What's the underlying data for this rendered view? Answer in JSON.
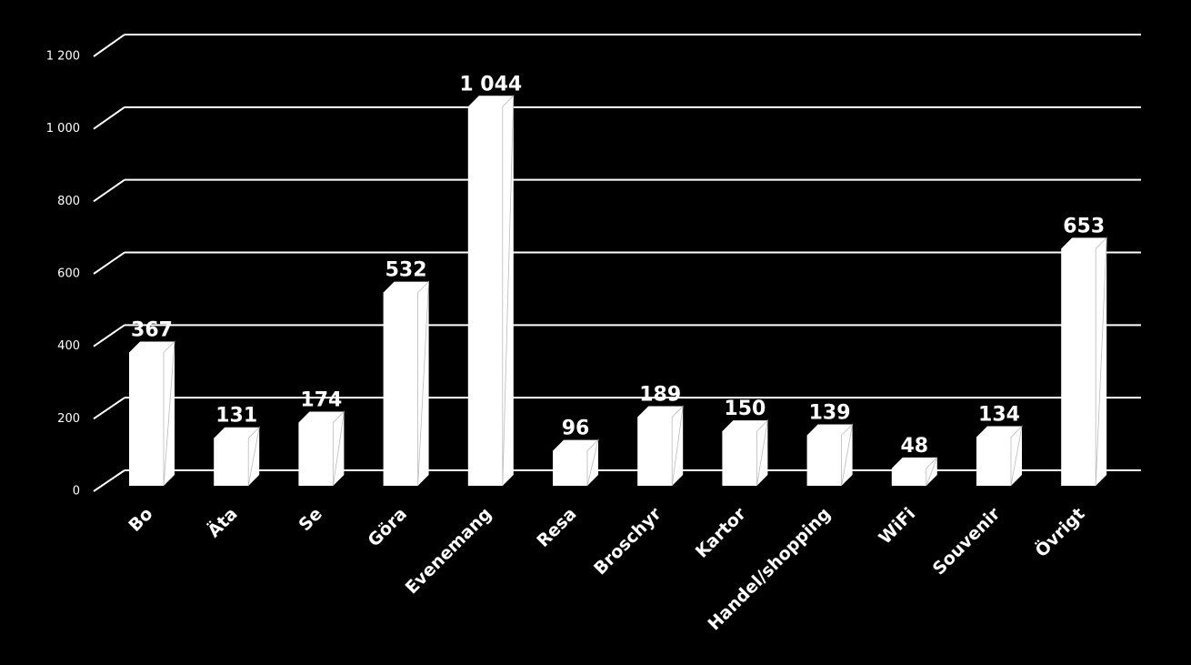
{
  "chart_data": {
    "type": "bar",
    "categories": [
      "Bo",
      "Äta",
      "Se",
      "Göra",
      "Evenemang",
      "Resa",
      "Broschyr",
      "Kartor",
      "Handel/shopping",
      "WiFi",
      "Souvenir",
      "Övrigt"
    ],
    "values": [
      367,
      131,
      174,
      532,
      1044,
      96,
      189,
      150,
      139,
      48,
      134,
      653
    ],
    "value_labels": [
      "367",
      "131",
      "174",
      "532",
      "1 044",
      "96",
      "189",
      "150",
      "139",
      "48",
      "134",
      "653"
    ],
    "color": "#ffffff",
    "ylim": [
      0,
      1200
    ],
    "yticks": [
      0,
      200,
      400,
      600,
      800,
      {
        "value": 1000,
        "label": "1 000"
      },
      {
        "value": 1200,
        "label": "1 200"
      }
    ],
    "grid": true
  }
}
